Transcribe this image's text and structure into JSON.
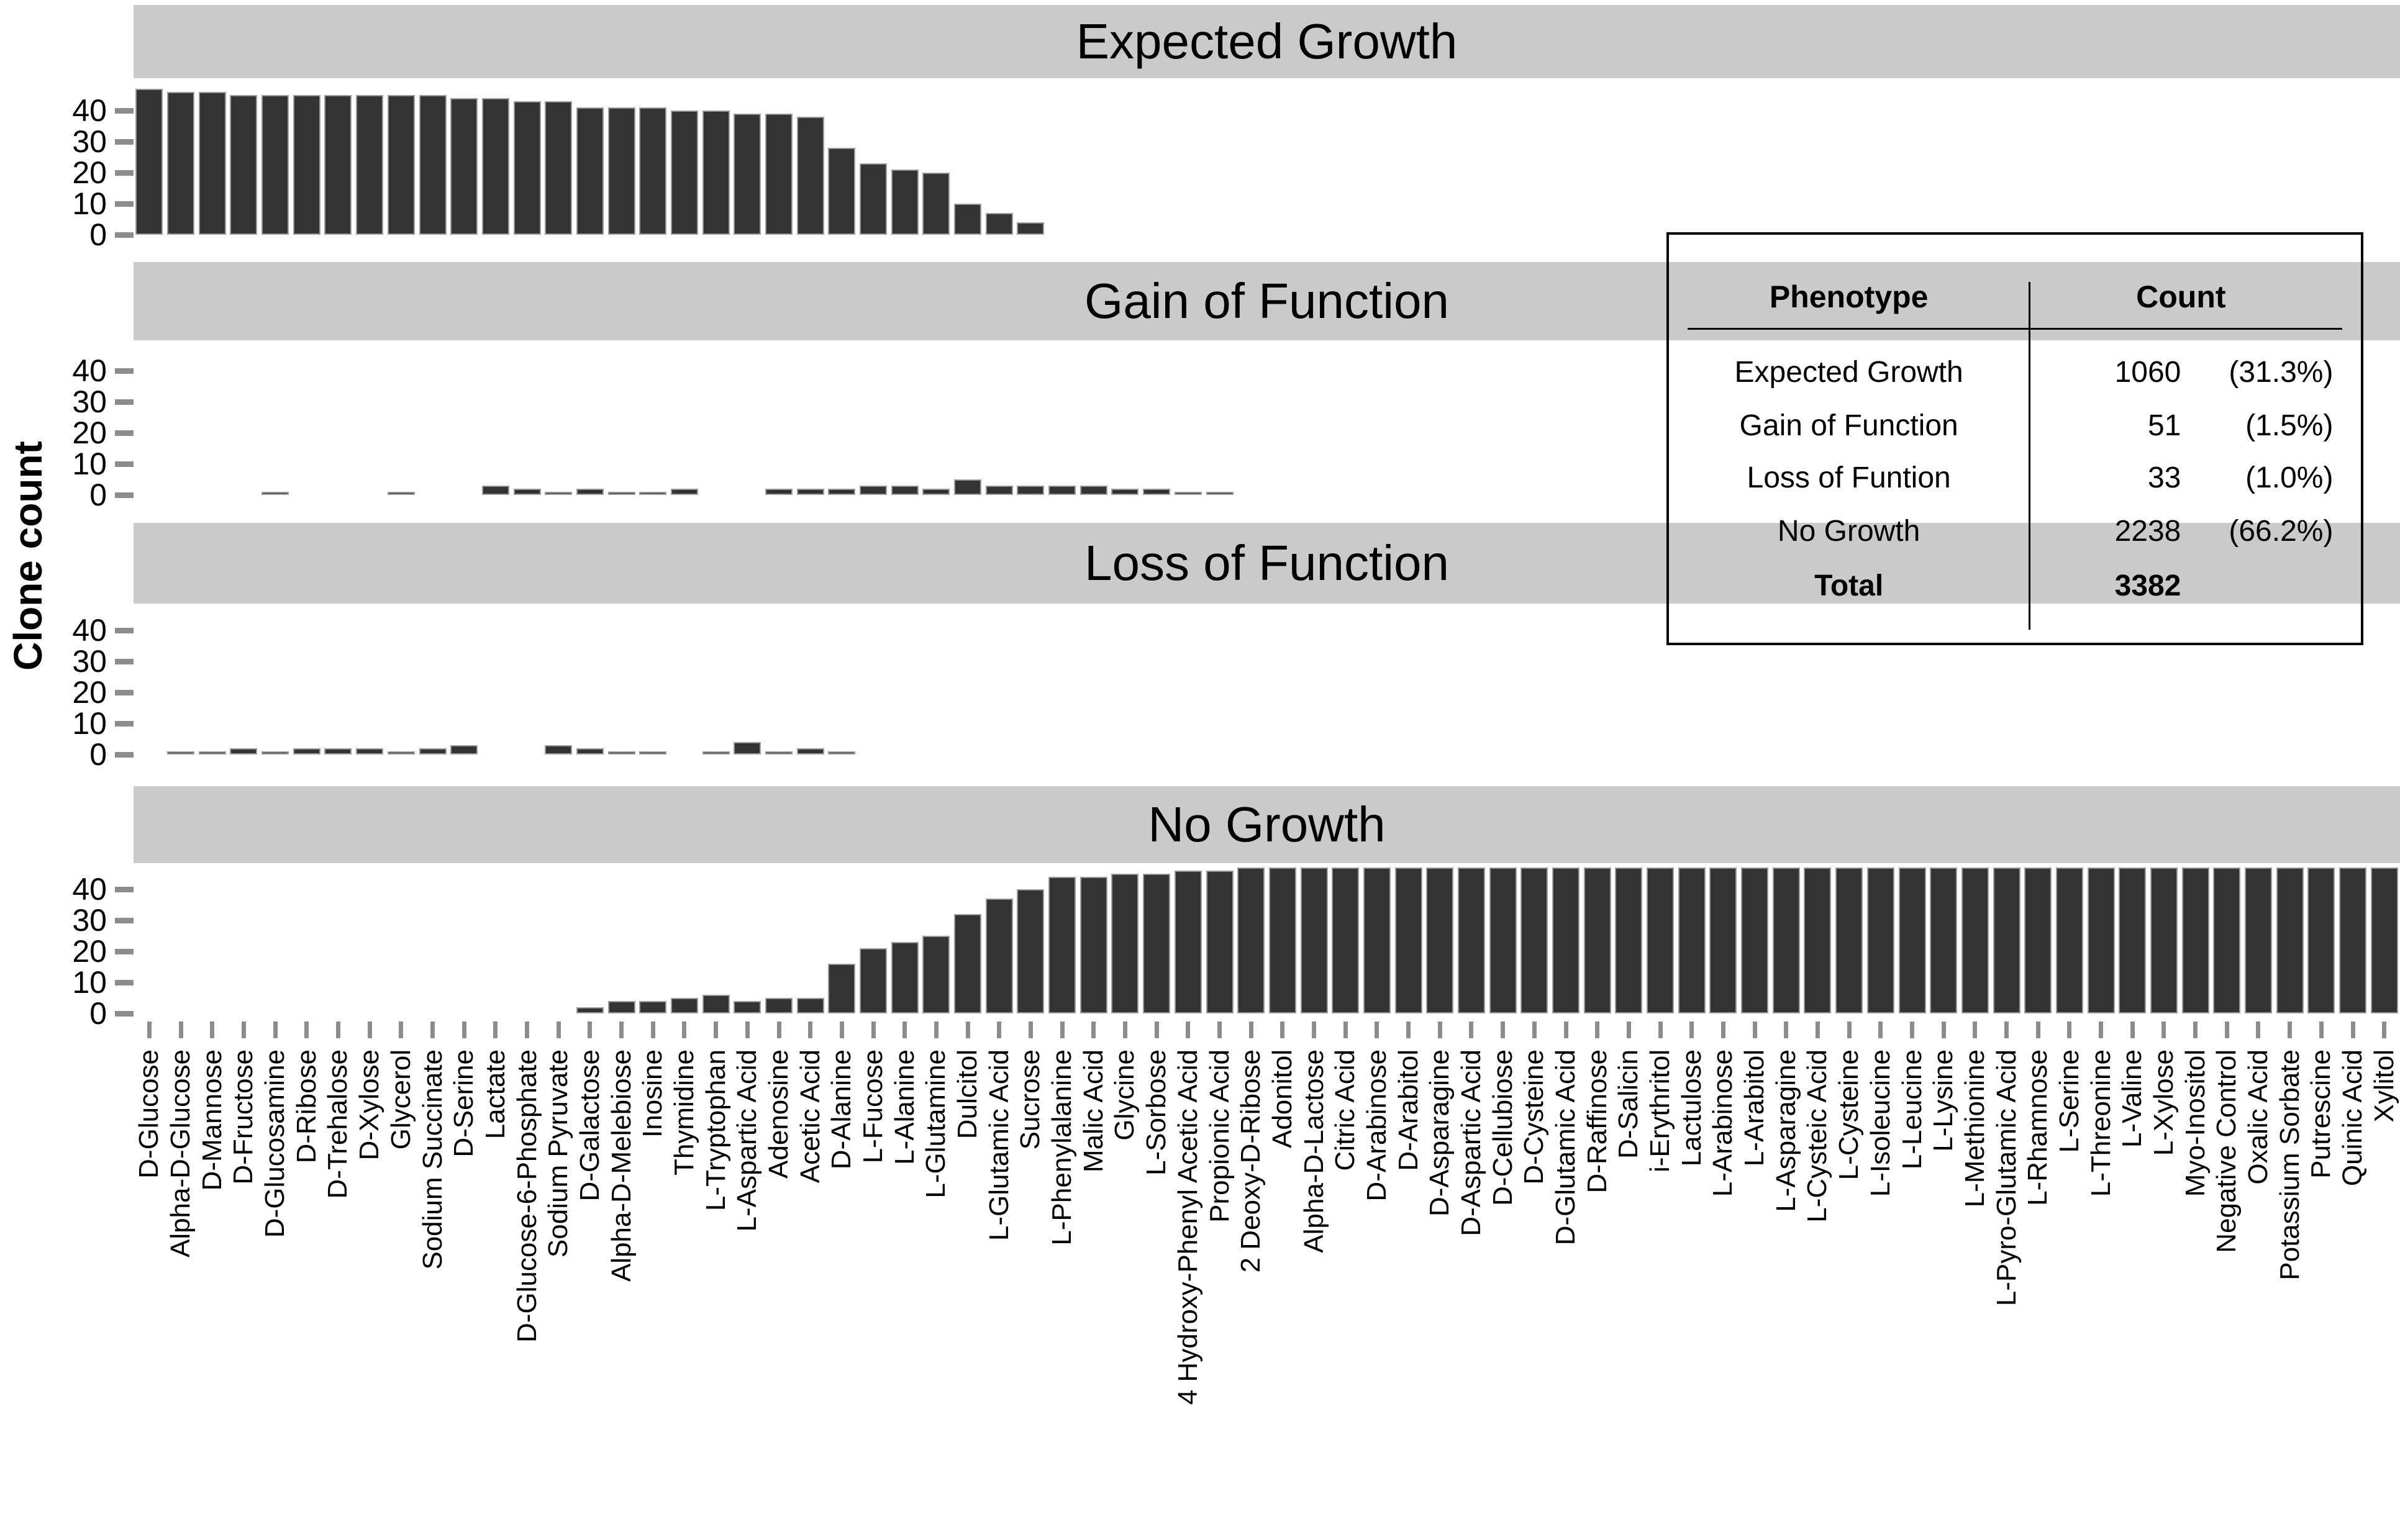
{
  "chart_data": {
    "type": "bar",
    "ylabel": "Clone count",
    "y_ticks": [
      0,
      10,
      20,
      30,
      40
    ],
    "ylim": [
      0,
      47
    ],
    "grid": false,
    "legend": "none",
    "bar_color": "#333333",
    "bar_border_color": "#9c9c9c",
    "strip_color": "#cacaca",
    "tick_color": "#8c8c8c",
    "categories": [
      "D-Glucose",
      "Alpha-D-Glucose",
      "D-Mannose",
      "D-Fructose",
      "D-Glucosamine",
      "D-Ribose",
      "D-Trehalose",
      "D-Xylose",
      "Glycerol",
      "Sodium Succinate",
      "D-Serine",
      "Lactate",
      "D-Glucose-6-Phosphate",
      "Sodium Pyruvate",
      "D-Galactose",
      "Alpha-D-Melebiose",
      "Inosine",
      "Thymidine",
      "L-Tryptophan",
      "L-Aspartic Acid",
      "Adenosine",
      "Acetic Acid",
      "D-Alanine",
      "L-Fucose",
      "L-Alanine",
      "L-Glutamine",
      "Dulcitol",
      "L-Glutamic Acid",
      "Sucrose",
      "L-Phenylalanine",
      "Malic Acid",
      "Glycine",
      "L-Sorbose",
      "4 Hydroxy-Phenyl Acetic Acid",
      "Propionic Acid",
      "2 Deoxy-D-Ribose",
      "Adonitol",
      "Alpha-D-Lactose",
      "Citric Acid",
      "D-Arabinose",
      "D-Arabitol",
      "D-Asparagine",
      "D-Aspartic Acid",
      "D-Cellubiose",
      "D-Cysteine",
      "D-Glutamic Acid",
      "D-Raffinose",
      "D-Salicin",
      "i-Erythritol",
      "Lactulose",
      "L-Arabinose",
      "L-Arabitol",
      "L-Asparagine",
      "L-Cysteic Acid",
      "L-Cysteine",
      "L-Isoleucine",
      "L-Leucine",
      "L-Lysine",
      "L-Methionine",
      "L-Pyro-Glutamic Acid",
      "L-Rhamnose",
      "L-Serine",
      "L-Threonine",
      "L-Valine",
      "L-Xylose",
      "Myo-Inositol",
      "Negative Control",
      "Oxalic Acid",
      "Potassium Sorbate",
      "Putrescine",
      "Quinic Acid",
      "Xylitol"
    ],
    "facets": [
      {
        "label": "Expected Growth",
        "values": [
          47,
          46,
          46,
          45,
          45,
          45,
          45,
          45,
          45,
          45,
          44,
          44,
          43,
          43,
          41,
          41,
          41,
          40,
          40,
          39,
          39,
          38,
          28,
          23,
          21,
          20,
          10,
          7,
          4,
          0,
          0,
          0,
          0,
          0,
          0,
          0,
          0,
          0,
          0,
          0,
          0,
          0,
          0,
          0,
          0,
          0,
          0,
          0,
          0,
          0,
          0,
          0,
          0,
          0,
          0,
          0,
          0,
          0,
          0,
          0,
          0,
          0,
          0,
          0,
          0,
          0,
          0,
          0,
          0,
          0,
          0,
          0
        ]
      },
      {
        "label": "Gain of Function",
        "values": [
          0,
          0,
          0,
          0,
          1,
          0,
          0,
          0,
          1,
          0,
          0,
          3,
          2,
          1,
          2,
          1,
          1,
          2,
          0,
          0,
          2,
          2,
          2,
          3,
          3,
          2,
          5,
          3,
          3,
          3,
          3,
          2,
          2,
          1,
          1,
          0,
          0,
          0,
          0,
          0,
          0,
          0,
          0,
          0,
          0,
          0,
          0,
          0,
          0,
          0,
          0,
          0,
          0,
          0,
          0,
          0,
          0,
          0,
          0,
          0,
          0,
          0,
          0,
          0,
          0,
          0,
          0,
          0,
          0,
          0,
          0,
          0
        ]
      },
      {
        "label": "Loss of Function",
        "values": [
          0,
          1,
          1,
          2,
          1,
          2,
          2,
          2,
          1,
          2,
          3,
          0,
          0,
          3,
          2,
          1,
          1,
          0,
          1,
          4,
          1,
          2,
          1,
          0,
          0,
          0,
          0,
          0,
          0,
          0,
          0,
          0,
          0,
          0,
          0,
          0,
          0,
          0,
          0,
          0,
          0,
          0,
          0,
          0,
          0,
          0,
          0,
          0,
          0,
          0,
          0,
          0,
          0,
          0,
          0,
          0,
          0,
          0,
          0,
          0,
          0,
          0,
          0,
          0,
          0,
          0,
          0,
          0,
          0,
          0,
          0,
          0
        ]
      },
      {
        "label": "No Growth",
        "values": [
          0,
          0,
          0,
          0,
          0,
          0,
          0,
          0,
          0,
          0,
          0,
          0,
          0,
          0,
          2,
          4,
          4,
          5,
          6,
          4,
          5,
          5,
          16,
          21,
          23,
          25,
          32,
          37,
          40,
          44,
          44,
          45,
          45,
          46,
          46,
          47,
          47,
          47,
          47,
          47,
          47,
          47,
          47,
          47,
          47,
          47,
          47,
          47,
          47,
          47,
          47,
          47,
          47,
          47,
          47,
          47,
          47,
          47,
          47,
          47,
          47,
          47,
          47,
          47,
          47,
          47,
          47,
          47,
          47,
          47,
          47,
          47
        ]
      }
    ]
  },
  "summary_table": {
    "headers": [
      "Phenotype",
      "Count"
    ],
    "rows": [
      [
        "Expected Growth",
        "1060",
        "(31.3%)"
      ],
      [
        "Gain of Function",
        "51",
        "(1.5%)"
      ],
      [
        "Loss of Funtion",
        "33",
        "(1.0%)"
      ],
      [
        "No Growth",
        "2238",
        "(66.2%)"
      ],
      [
        "Total",
        "3382",
        ""
      ]
    ]
  }
}
